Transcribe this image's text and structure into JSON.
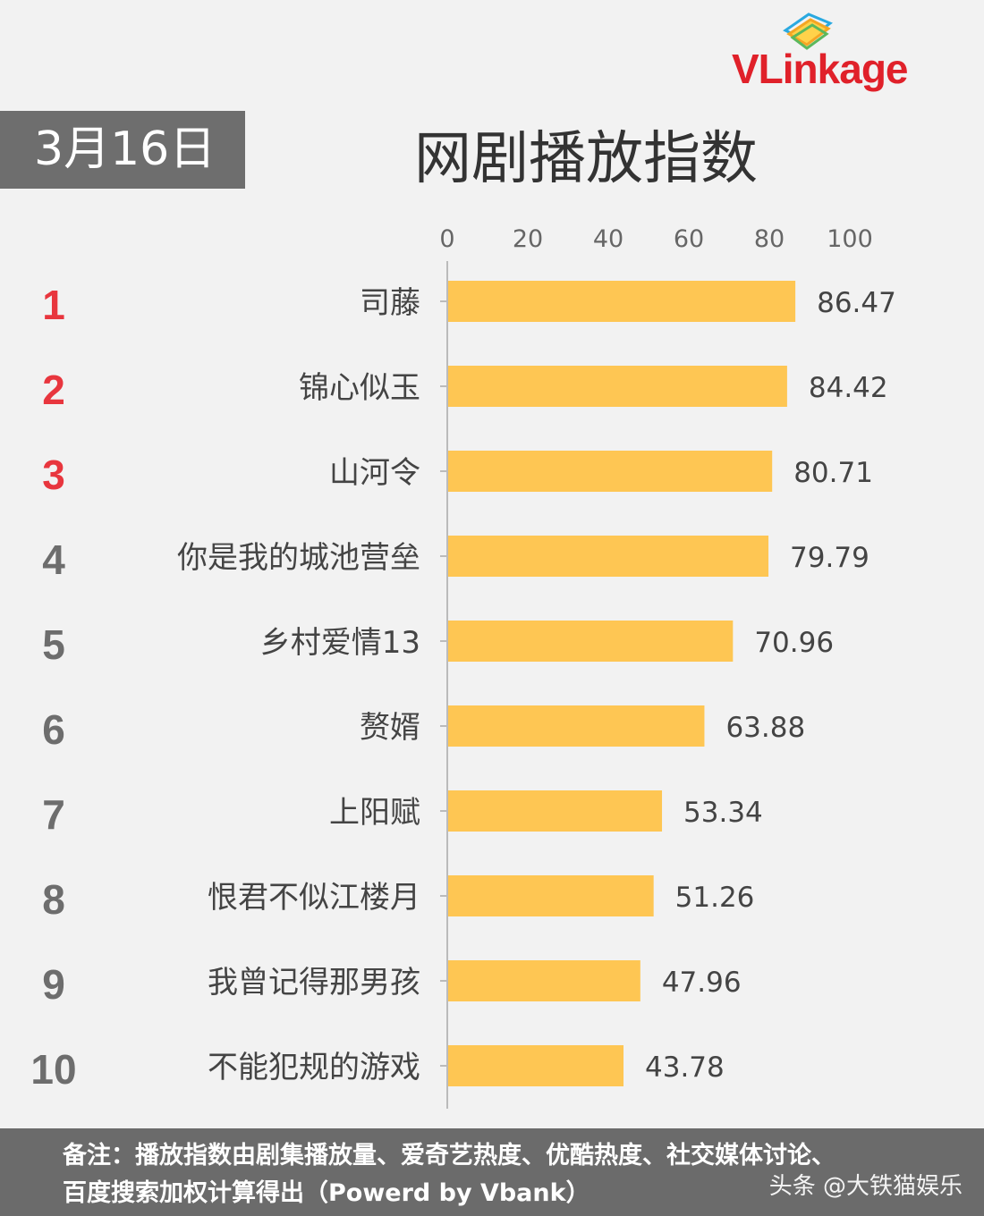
{
  "brand": {
    "logo_text": "VLinkage"
  },
  "header": {
    "date": "3月16日",
    "title": "网剧播放指数"
  },
  "colors": {
    "bar": "#fec653",
    "rank_top": "#e8363e",
    "rank_other": "#6d6d6d",
    "text": "#444444",
    "axis": "#bbbbbb"
  },
  "chart_data": {
    "type": "bar",
    "orientation": "horizontal",
    "title": "网剧播放指数",
    "categories": [
      "司藤",
      "锦心似玉",
      "山河令",
      "你是我的城池营垒",
      "乡村爱情13",
      "赘婿",
      "上阳赋",
      "恨君不似江楼月",
      "我曾记得那男孩",
      "不能犯规的游戏"
    ],
    "ranks": [
      "1",
      "2",
      "3",
      "4",
      "5",
      "6",
      "7",
      "8",
      "9",
      "10"
    ],
    "values": [
      86.47,
      84.42,
      80.71,
      79.79,
      70.96,
      63.88,
      53.34,
      51.26,
      47.96,
      43.78
    ],
    "xlim": [
      0,
      100
    ],
    "xticks": [
      0,
      20,
      40,
      60,
      80,
      100
    ],
    "axis_position": "top",
    "grid": false,
    "legend": "none"
  },
  "footer": {
    "note_line1": "备注：播放指数由剧集播放量、爱奇艺热度、优酷热度、社交媒体讨论、",
    "note_line2": "百度搜索加权计算得出（Powerd by Vbank）",
    "watermark": "头条 @大铁猫娱乐"
  }
}
